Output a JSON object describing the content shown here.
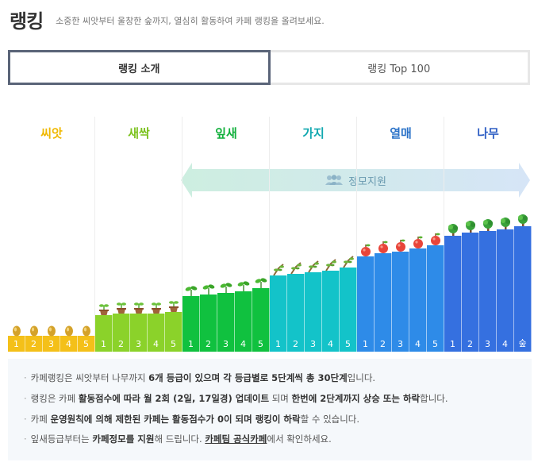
{
  "header": {
    "title": "랭킹",
    "subtitle": "소중한 씨앗부터 울창한 숲까지, 열심히 활동하여 카페 랭킹을 올려보세요."
  },
  "tabs": [
    {
      "label": "랭킹 소개",
      "active": true
    },
    {
      "label": "랭킹 Top 100",
      "active": false
    }
  ],
  "banner": {
    "label": "정모지원",
    "icon": "group-icon"
  },
  "stages": [
    {
      "name": "씨앗",
      "color": "#f4c019",
      "label_color": "#f0b800",
      "levels": [
        "1",
        "2",
        "3",
        "4",
        "5"
      ],
      "icon": "seed-icon"
    },
    {
      "name": "새싹",
      "color": "#8bd22a",
      "label_color": "#7cc21e",
      "levels": [
        "1",
        "2",
        "3",
        "4",
        "5"
      ],
      "icon": "sprout-pot-icon"
    },
    {
      "name": "잎새",
      "color": "#10c13f",
      "label_color": "#12b03c",
      "levels": [
        "1",
        "2",
        "3",
        "4",
        "5"
      ],
      "icon": "leaf-icon"
    },
    {
      "name": "가지",
      "color": "#13c3c9",
      "label_color": "#12a8b0",
      "levels": [
        "1",
        "2",
        "3",
        "4",
        "5"
      ],
      "icon": "branch-icon"
    },
    {
      "name": "열매",
      "color": "#2e8be8",
      "label_color": "#2a72c8",
      "levels": [
        "1",
        "2",
        "3",
        "4",
        "5"
      ],
      "icon": "fruit-icon"
    },
    {
      "name": "나무",
      "color": "#3570e0",
      "label_color": "#2f5fc4",
      "levels": [
        "1",
        "2",
        "3",
        "4",
        "숲"
      ],
      "icon": "tree-icon"
    }
  ],
  "notes": {
    "n1": {
      "a": "카페랭킹은 씨앗부터 나무까지 ",
      "b": "6개 등급이 있으며 각 등급별로 5단계씩 총 30단계",
      "c": "입니다."
    },
    "n2": {
      "a": "랭킹은 카페 ",
      "b": "활동점수에 따라 월 2회 (2일, 17일경) 업데이트",
      "c": " 되며 ",
      "d": "한번에 2단계까지 상승 또는 하락",
      "e": "합니다."
    },
    "n3": {
      "a": "카페 ",
      "b": "운영원칙에 의해 제한된 카페는 활동점수가 0이 되며 랭킹이 하락",
      "c": "할 수 있습니다."
    },
    "n4": {
      "a": "잎새등급부터는 ",
      "b": "카페정모를 지원",
      "c": "해 드립니다. ",
      "d": "카페팀 공식카페",
      "e": "에서 확인하세요."
    }
  }
}
